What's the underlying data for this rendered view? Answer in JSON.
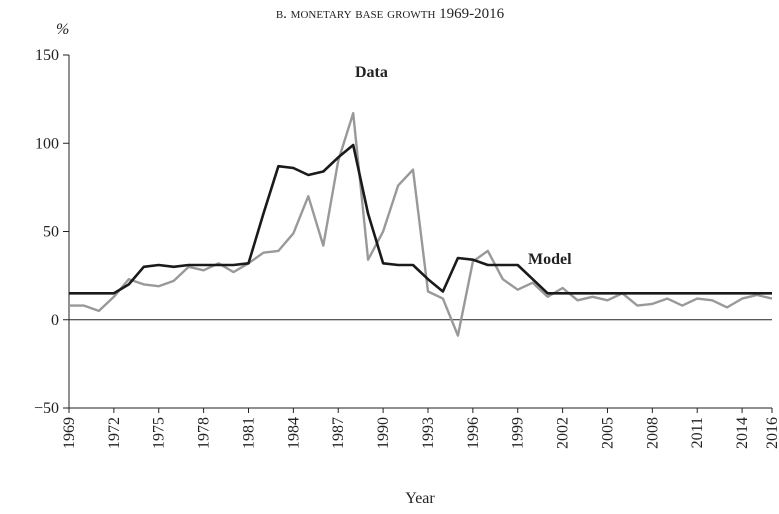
{
  "chart_data": {
    "type": "line",
    "title": "b. monetary base growth 1969-2016",
    "ylabel": "%",
    "xlabel": "Year",
    "x": [
      1969,
      1970,
      1971,
      1972,
      1973,
      1974,
      1975,
      1976,
      1977,
      1978,
      1979,
      1980,
      1981,
      1982,
      1983,
      1984,
      1985,
      1986,
      1987,
      1988,
      1989,
      1990,
      1991,
      1992,
      1993,
      1994,
      1995,
      1996,
      1997,
      1998,
      1999,
      2000,
      2001,
      2002,
      2003,
      2004,
      2005,
      2006,
      2007,
      2008,
      2009,
      2010,
      2011,
      2012,
      2013,
      2014,
      2015,
      2016
    ],
    "series": [
      {
        "name": "Data",
        "color": "#999999",
        "values": [
          8,
          8,
          5,
          13,
          23,
          20,
          19,
          22,
          30,
          28,
          32,
          27,
          32,
          38,
          39,
          49,
          70,
          42,
          90,
          117,
          34,
          50,
          76,
          85,
          16,
          12,
          -9,
          33,
          39,
          23,
          17,
          21,
          13,
          18,
          11,
          13,
          11,
          15,
          8,
          9,
          12,
          8,
          12,
          11,
          7,
          12,
          14,
          12
        ]
      },
      {
        "name": "Model",
        "color": "#1a1a1a",
        "values": [
          15,
          15,
          15,
          15,
          20,
          30,
          31,
          30,
          31,
          31,
          31,
          31,
          32,
          60,
          87,
          86,
          82,
          84,
          92,
          99,
          60,
          32,
          31,
          31,
          23,
          16,
          35,
          34,
          31,
          31,
          31,
          23,
          15,
          15,
          15,
          15,
          15,
          15,
          15,
          15,
          15,
          15,
          15,
          15,
          15,
          15,
          15,
          15
        ]
      }
    ],
    "xlim": [
      1969,
      2016
    ],
    "xticks": [
      1969,
      1972,
      1975,
      1978,
      1981,
      1984,
      1987,
      1990,
      1993,
      1996,
      1999,
      2002,
      2005,
      2008,
      2011,
      2014,
      2016
    ],
    "ylim": [
      -50,
      150
    ],
    "yticks": [
      150,
      100,
      50,
      0,
      {
        "value": -50,
        "label": "−50"
      }
    ]
  }
}
